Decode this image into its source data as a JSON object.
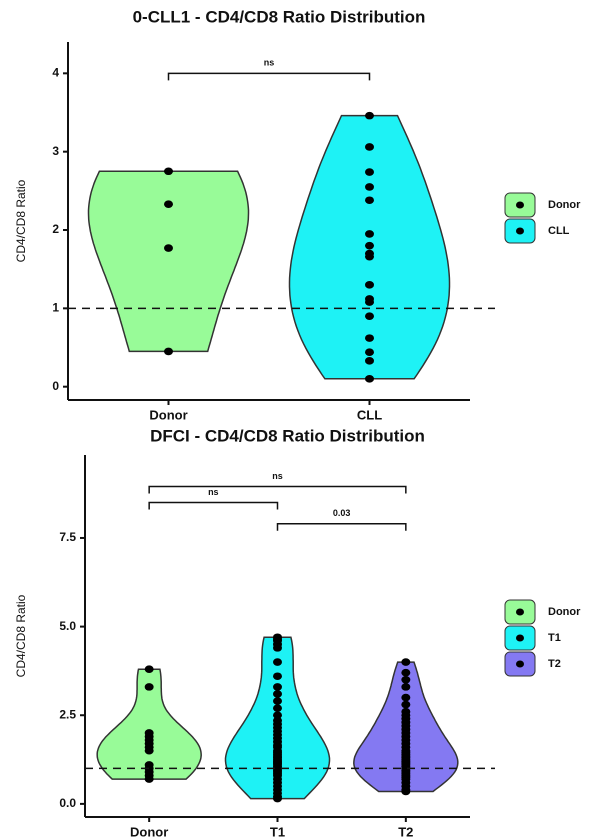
{
  "chart_data": [
    {
      "type": "violin",
      "title": "0-CLL1 - CD4/CD8 Ratio Distribution",
      "y_label": "CD4/CD8 Ratio",
      "categories": [
        "Donor",
        "CLL"
      ],
      "series": [
        {
          "name": "Donor",
          "color": "#98fb98",
          "values": [
            2.75,
            2.33,
            1.77,
            0.45
          ]
        },
        {
          "name": "CLL",
          "color": "#1ef2f5",
          "values": [
            3.46,
            3.06,
            2.74,
            2.55,
            2.38,
            1.95,
            1.8,
            1.7,
            1.66,
            1.3,
            1.12,
            1.08,
            0.9,
            0.62,
            0.44,
            0.33,
            0.1
          ]
        }
      ],
      "ylim": [
        -0.17,
        4.4
      ],
      "yticks": [
        0,
        1,
        2,
        3,
        4
      ],
      "reference_line": 1,
      "comparisons": [
        {
          "groups": [
            "Donor",
            "CLL"
          ],
          "y": 4.0,
          "label": "ns"
        }
      ]
    },
    {
      "type": "violin",
      "title": "DFCI - CD4/CD8 Ratio Distribution",
      "y_label": "CD4/CD8 Ratio",
      "categories": [
        "Donor",
        "T1",
        "T2"
      ],
      "series": [
        {
          "name": "Donor",
          "color": "#98fb98",
          "values": [
            3.8,
            3.3,
            2.0,
            1.9,
            1.8,
            1.7,
            1.6,
            1.5,
            1.1,
            1.0,
            0.9,
            0.8,
            0.7
          ]
        },
        {
          "name": "T1",
          "color": "#1ef2f5",
          "values": [
            4.7,
            4.65,
            4.6,
            4.5,
            4.4,
            4.0,
            3.6,
            3.3,
            3.1,
            2.9,
            2.7,
            2.5,
            2.35,
            2.25,
            2.15,
            2.05,
            1.95,
            1.85,
            1.75,
            1.65,
            1.6,
            1.5,
            1.45,
            1.4,
            1.35,
            1.3,
            1.25,
            1.2,
            1.15,
            1.1,
            1.05,
            1.0,
            0.95,
            0.9,
            0.85,
            0.8,
            0.7,
            0.6,
            0.5,
            0.4,
            0.3,
            0.2,
            0.15
          ]
        },
        {
          "name": "T2",
          "color": "#8479f2",
          "values": [
            4.0,
            3.7,
            3.5,
            3.3,
            3.0,
            2.8,
            2.6,
            2.5,
            2.4,
            2.3,
            2.2,
            2.1,
            2.0,
            1.9,
            1.8,
            1.7,
            1.6,
            1.5,
            1.45,
            1.4,
            1.35,
            1.3,
            1.25,
            1.2,
            1.15,
            1.1,
            1.05,
            1.0,
            0.95,
            0.9,
            0.85,
            0.8,
            0.75,
            0.7,
            0.6,
            0.5,
            0.4,
            0.35
          ]
        }
      ],
      "ylim": [
        -0.37,
        9.84
      ],
      "yticks": [
        {
          "value": 0,
          "label": "0.0"
        },
        {
          "value": 2.5,
          "label": "2.5"
        },
        {
          "value": 5,
          "label": "5.0"
        },
        {
          "value": 7.5,
          "label": "7.5"
        }
      ],
      "reference_line": 1,
      "comparisons": [
        {
          "groups": [
            "Donor",
            "T2"
          ],
          "y": 8.95,
          "label": "ns"
        },
        {
          "groups": [
            "Donor",
            "T1"
          ],
          "y": 8.5,
          "label": "ns"
        },
        {
          "groups": [
            "T1",
            "T2"
          ],
          "y": 7.9,
          "label": "0.03"
        }
      ]
    }
  ]
}
